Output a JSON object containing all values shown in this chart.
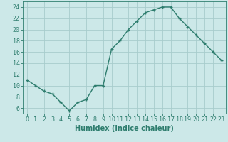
{
  "x": [
    0,
    1,
    2,
    3,
    4,
    5,
    6,
    7,
    8,
    9,
    10,
    11,
    12,
    13,
    14,
    15,
    16,
    17,
    18,
    19,
    20,
    21,
    22,
    23
  ],
  "y": [
    11,
    10,
    9,
    8.5,
    7,
    5.5,
    7,
    7.5,
    10,
    10,
    16.5,
    18,
    20,
    21.5,
    23,
    23.5,
    24,
    24,
    22,
    20.5,
    19,
    17.5,
    16,
    14.5
  ],
  "line_color": "#2e7d6e",
  "marker": "+",
  "bg_color": "#cce8e8",
  "grid_color": "#a8cccc",
  "axis_color": "#2e7d6e",
  "xlabel": "Humidex (Indice chaleur)",
  "ylim": [
    5,
    25
  ],
  "xlim": [
    -0.5,
    23.5
  ],
  "yticks": [
    6,
    8,
    10,
    12,
    14,
    16,
    18,
    20,
    22,
    24
  ],
  "xticks": [
    0,
    1,
    2,
    3,
    4,
    5,
    6,
    7,
    8,
    9,
    10,
    11,
    12,
    13,
    14,
    15,
    16,
    17,
    18,
    19,
    20,
    21,
    22,
    23
  ],
  "font_color": "#2e7d6e",
  "xlabel_fontsize": 7,
  "tick_fontsize": 6,
  "linewidth": 1.0,
  "markersize": 3,
  "markeredgewidth": 1.0
}
